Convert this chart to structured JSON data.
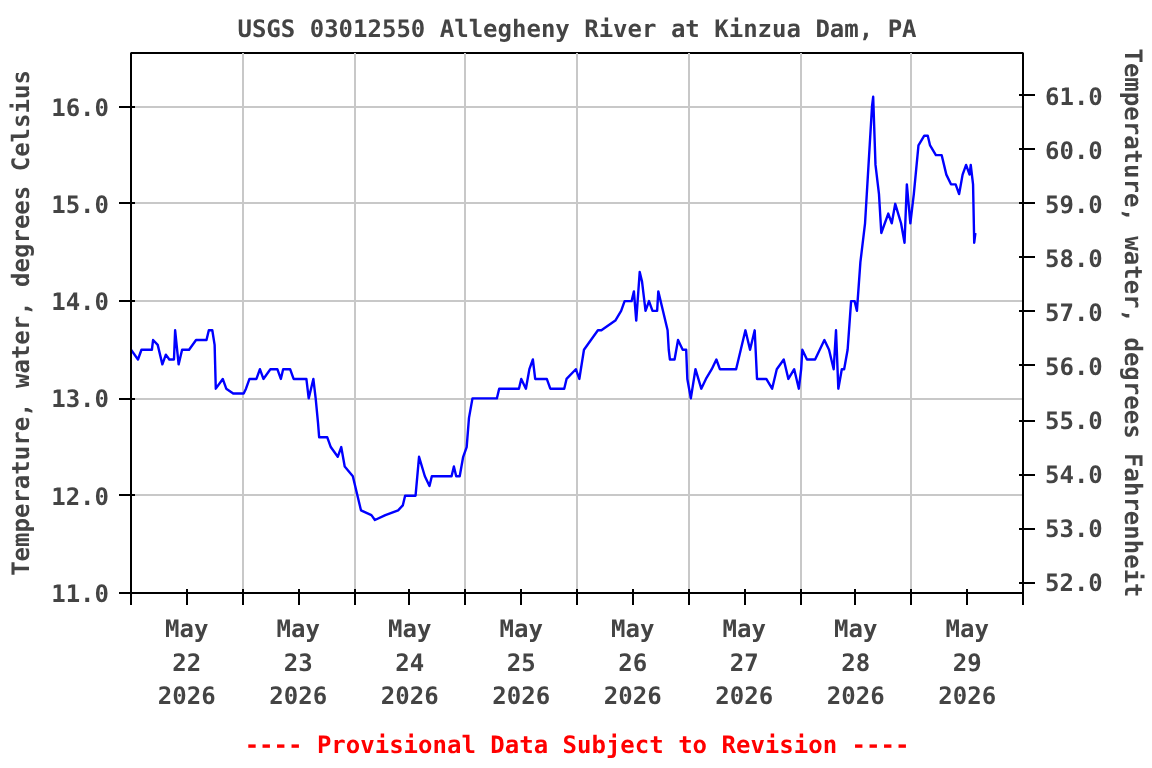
{
  "chart_data": {
    "type": "line",
    "title": "USGS 03012550 Allegheny River at Kinzua Dam, PA",
    "ylabel": "Temperature, water, degrees Celsius",
    "y2label": "Temperature, water, degrees Fahrenheit",
    "annotations": [
      "---- Provisional Data Subject to Revision ----"
    ],
    "x": [
      "2026-05-22T00:00",
      "2026-05-22T01:30",
      "2026-05-22T02:15",
      "2026-05-22T04:30",
      "2026-05-22T04:45",
      "2026-05-22T05:45",
      "2026-05-22T06:45",
      "2026-05-22T07:30",
      "2026-05-22T08:15",
      "2026-05-22T09:15",
      "2026-05-22T09:30",
      "2026-05-22T10:15",
      "2026-05-22T11:00",
      "2026-05-22T12:30",
      "2026-05-22T14:00",
      "2026-05-22T16:15",
      "2026-05-22T16:45",
      "2026-05-22T17:30",
      "2026-05-22T18:00",
      "2026-05-22T18:15",
      "2026-05-22T19:45",
      "2026-05-22T20:30",
      "2026-05-22T22:00",
      "2026-05-23T00:15",
      "2026-05-23T00:45",
      "2026-05-23T01:30",
      "2026-05-23T03:00",
      "2026-05-23T03:45",
      "2026-05-23T04:30",
      "2026-05-23T06:00",
      "2026-05-23T07:30",
      "2026-05-23T08:15",
      "2026-05-23T08:45",
      "2026-05-23T10:15",
      "2026-05-23T11:00",
      "2026-05-23T13:45",
      "2026-05-23T14:15",
      "2026-05-23T15:15",
      "2026-05-23T15:45",
      "2026-05-23T16:15",
      "2026-05-23T16:30",
      "2026-05-23T18:15",
      "2026-05-23T19:00",
      "2026-05-23T20:30",
      "2026-05-23T21:15",
      "2026-05-23T22:00",
      "2026-05-23T23:45",
      "2026-05-24T00:45",
      "2026-05-24T01:30",
      "2026-05-24T03:45",
      "2026-05-24T04:30",
      "2026-05-24T06:45",
      "2026-05-24T09:30",
      "2026-05-24T10:30",
      "2026-05-24T11:00",
      "2026-05-24T13:15",
      "2026-05-24T14:00",
      "2026-05-24T15:15",
      "2026-05-24T16:15",
      "2026-05-24T16:45",
      "2026-05-24T21:00",
      "2026-05-24T21:30",
      "2026-05-24T22:00",
      "2026-05-24T22:45",
      "2026-05-24T23:30",
      "2026-05-25T00:15",
      "2026-05-25T00:45",
      "2026-05-25T01:30",
      "2026-05-25T06:45",
      "2026-05-25T07:15",
      "2026-05-25T11:30",
      "2026-05-25T12:00",
      "2026-05-25T13:00",
      "2026-05-25T13:45",
      "2026-05-25T14:30",
      "2026-05-25T15:00",
      "2026-05-25T17:30",
      "2026-05-25T18:15",
      "2026-05-25T21:15",
      "2026-05-25T21:45",
      "2026-05-25T23:45",
      "2026-05-26T00:30",
      "2026-05-26T01:30",
      "2026-05-26T03:00",
      "2026-05-26T04:30",
      "2026-05-26T05:15",
      "2026-05-26T08:15",
      "2026-05-26T09:30",
      "2026-05-26T10:15",
      "2026-05-26T11:45",
      "2026-05-26T12:15",
      "2026-05-26T12:45",
      "2026-05-26T13:30",
      "2026-05-26T14:00",
      "2026-05-26T14:45",
      "2026-05-26T15:30",
      "2026-05-26T16:15",
      "2026-05-26T17:15",
      "2026-05-26T17:30",
      "2026-05-26T18:30",
      "2026-05-26T19:30",
      "2026-05-26T19:45",
      "2026-05-26T20:00",
      "2026-05-26T21:00",
      "2026-05-26T21:45",
      "2026-05-26T22:45",
      "2026-05-26T23:30",
      "2026-05-26T23:45",
      "2026-05-27T00:30",
      "2026-05-27T01:30",
      "2026-05-27T02:45",
      "2026-05-27T03:45",
      "2026-05-27T05:00",
      "2026-05-27T06:00",
      "2026-05-27T06:45",
      "2026-05-27T10:15",
      "2026-05-27T11:15",
      "2026-05-27T12:15",
      "2026-05-27T13:15",
      "2026-05-27T14:15",
      "2026-05-27T14:45",
      "2026-05-27T16:45",
      "2026-05-27T18:00",
      "2026-05-27T19:00",
      "2026-05-27T20:30",
      "2026-05-27T21:30",
      "2026-05-27T22:45",
      "2026-05-27T23:45",
      "2026-05-28T00:15",
      "2026-05-28T00:30",
      "2026-05-28T01:30",
      "2026-05-28T03:15",
      "2026-05-28T04:15",
      "2026-05-28T05:15",
      "2026-05-28T06:15",
      "2026-05-28T07:15",
      "2026-05-28T07:45",
      "2026-05-28T08:15",
      "2026-05-28T09:00",
      "2026-05-28T09:30",
      "2026-05-28T10:15",
      "2026-05-28T11:00",
      "2026-05-28T11:45",
      "2026-05-28T12:15",
      "2026-05-28T13:00",
      "2026-05-28T14:00",
      "2026-05-28T14:45",
      "2026-05-28T15:30",
      "2026-05-28T15:45",
      "2026-05-28T16:15",
      "2026-05-28T17:00",
      "2026-05-28T17:30",
      "2026-05-28T19:00",
      "2026-05-28T19:45",
      "2026-05-28T20:30",
      "2026-05-28T21:45",
      "2026-05-28T22:30",
      "2026-05-28T23:00",
      "2026-05-28T23:45",
      "2026-05-29T00:30",
      "2026-05-29T01:30",
      "2026-05-29T02:45",
      "2026-05-29T03:30",
      "2026-05-29T04:00",
      "2026-05-29T05:15",
      "2026-05-29T06:30",
      "2026-05-29T07:30",
      "2026-05-29T08:30",
      "2026-05-29T09:30",
      "2026-05-29T10:15",
      "2026-05-29T11:00",
      "2026-05-29T11:45",
      "2026-05-29T12:30",
      "2026-05-29T12:45",
      "2026-05-29T13:15",
      "2026-05-29T13:30",
      "2026-05-29T13:45"
    ],
    "series": [
      {
        "color": "#0000ff",
        "values": [
          13.5,
          13.4,
          13.5,
          13.5,
          13.6,
          13.55,
          13.35,
          13.45,
          13.4,
          13.4,
          13.7,
          13.35,
          13.5,
          13.5,
          13.6,
          13.6,
          13.7,
          13.7,
          13.55,
          13.1,
          13.2,
          13.1,
          13.05,
          13.05,
          13.1,
          13.2,
          13.2,
          13.3,
          13.2,
          13.3,
          13.3,
          13.2,
          13.3,
          13.3,
          13.2,
          13.2,
          13.0,
          13.2,
          13.0,
          12.75,
          12.6,
          12.6,
          12.5,
          12.4,
          12.5,
          12.3,
          12.2,
          12.0,
          11.85,
          11.8,
          11.75,
          11.8,
          11.85,
          11.9,
          12.0,
          12.0,
          12.4,
          12.2,
          12.1,
          12.2,
          12.2,
          12.3,
          12.2,
          12.2,
          12.4,
          12.5,
          12.8,
          13.0,
          13.0,
          13.1,
          13.1,
          13.2,
          13.1,
          13.3,
          13.4,
          13.2,
          13.2,
          13.1,
          13.1,
          13.2,
          13.3,
          13.2,
          13.5,
          13.6,
          13.7,
          13.7,
          13.8,
          13.9,
          14.0,
          14.0,
          14.1,
          13.8,
          14.3,
          14.2,
          13.9,
          14.0,
          13.9,
          13.9,
          14.1,
          13.9,
          13.7,
          13.5,
          13.4,
          13.4,
          13.6,
          13.5,
          13.5,
          13.2,
          13.0,
          13.3,
          13.1,
          13.2,
          13.3,
          13.4,
          13.3,
          13.3,
          13.5,
          13.7,
          13.5,
          13.7,
          13.2,
          13.2,
          13.1,
          13.3,
          13.4,
          13.2,
          13.3,
          13.1,
          13.3,
          13.5,
          13.4,
          13.4,
          13.5,
          13.6,
          13.5,
          13.3,
          13.7,
          13.1,
          13.3,
          13.3,
          13.5,
          14.0,
          14.0,
          13.9,
          14.4,
          14.8,
          15.4,
          16.0,
          16.1,
          15.4,
          15.1,
          14.7,
          14.9,
          14.8,
          15.0,
          14.8,
          14.6,
          15.2,
          14.8,
          15.1,
          15.6,
          15.7,
          15.7,
          15.6,
          15.5,
          15.5,
          15.3,
          15.2,
          15.2,
          15.1,
          15.3,
          15.4,
          15.3,
          15.4,
          15.2,
          14.6,
          14.7
        ]
      }
    ],
    "xlim": [
      "2026-05-22T00:00",
      "2026-05-30T00:00"
    ],
    "xticks": [
      {
        "value": "2026-05-22T00:00",
        "label": null
      },
      {
        "value": "2026-05-22T12:00",
        "label": "May\n22\n2026"
      },
      {
        "value": "2026-05-23T00:00",
        "label": null
      },
      {
        "value": "2026-05-23T12:00",
        "label": "May\n23\n2026"
      },
      {
        "value": "2026-05-24T00:00",
        "label": null
      },
      {
        "value": "2026-05-24T12:00",
        "label": "May\n24\n2026"
      },
      {
        "value": "2026-05-25T00:00",
        "label": null
      },
      {
        "value": "2026-05-25T12:00",
        "label": "May\n25\n2026"
      },
      {
        "value": "2026-05-26T00:00",
        "label": null
      },
      {
        "value": "2026-05-26T12:00",
        "label": "May\n26\n2026"
      },
      {
        "value": "2026-05-27T00:00",
        "label": null
      },
      {
        "value": "2026-05-27T12:00",
        "label": "May\n27\n2026"
      },
      {
        "value": "2026-05-28T00:00",
        "label": null
      },
      {
        "value": "2026-05-28T12:00",
        "label": "May\n28\n2026"
      },
      {
        "value": "2026-05-29T00:00",
        "label": null
      },
      {
        "value": "2026-05-29T12:00",
        "label": "May\n29\n2026"
      },
      {
        "value": "2026-05-30T00:00",
        "label": null
      }
    ],
    "ylim": [
      11.0,
      16.55
    ],
    "yticks": [
      {
        "value": 11,
        "label": "11.0"
      },
      {
        "value": 12,
        "label": "12.0"
      },
      {
        "value": 13,
        "label": "13.0"
      },
      {
        "value": 14,
        "label": "14.0"
      },
      {
        "value": 15,
        "label": "15.0"
      },
      {
        "value": 16,
        "label": "16.0"
      }
    ],
    "y2lim": [
      51.8,
      61.79
    ],
    "y2ticks": [
      {
        "value": 52,
        "label": "52.0"
      },
      {
        "value": 53,
        "label": "53.0"
      },
      {
        "value": 54,
        "label": "54.0"
      },
      {
        "value": 55,
        "label": "55.0"
      },
      {
        "value": 56,
        "label": "56.0"
      },
      {
        "value": 57,
        "label": "57.0"
      },
      {
        "value": 58,
        "label": "58.0"
      },
      {
        "value": 59,
        "label": "59.0"
      },
      {
        "value": 60,
        "label": "60.0"
      },
      {
        "value": 61,
        "label": "61.0"
      }
    ],
    "grid": true,
    "line_style": "solid"
  }
}
